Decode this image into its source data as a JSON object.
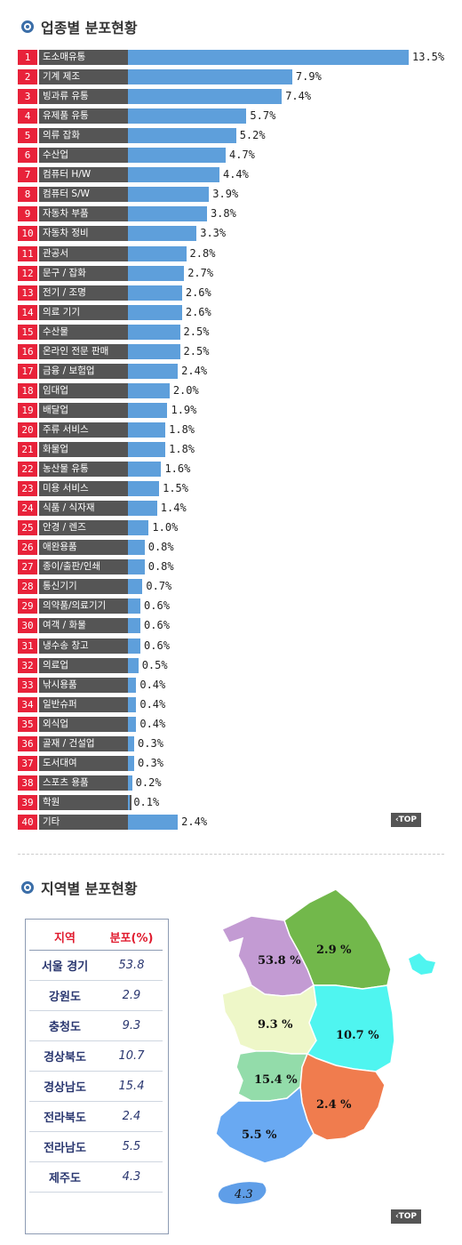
{
  "industry": {
    "title": "업종별 분포현황",
    "top_label": "‹TOP"
  },
  "region": {
    "title": "지역별 분포현황",
    "header": {
      "region": "지역",
      "share": "분포(%)"
    },
    "top_label": "‹TOP"
  },
  "chart_data": [
    {
      "type": "bar",
      "orientation": "horizontal",
      "title": "업종별 분포현황",
      "unit": "%",
      "ranks": [
        "1",
        "2",
        "3",
        "4",
        "5",
        "6",
        "7",
        "8",
        "9",
        "10",
        "11",
        "12",
        "13",
        "14",
        "15",
        "16",
        "17",
        "18",
        "19",
        "20",
        "21",
        "22",
        "23",
        "24",
        "25",
        "26",
        "27",
        "28",
        "29",
        "30",
        "31",
        "32",
        "33",
        "34",
        "35",
        "36",
        "37",
        "38",
        "39",
        "40"
      ],
      "categories": [
        "도소매유통",
        "기계 제조",
        "빙과류 유통",
        "유제품 유통",
        "의류 잡화",
        "수산업",
        "컴퓨터 H/W",
        "컴퓨터 S/W",
        "자동차 부품",
        "자동차 정비",
        "관공서",
        "문구 / 잡화",
        "전기 / 조명",
        "의료 기기",
        "수산물",
        "온라인 전문 판매",
        "금융 / 보험업",
        "임대업",
        "배달업",
        "주류 서비스",
        "화물업",
        "농산물 유통",
        "미용 서비스",
        "식품 / 식자재",
        "안경 / 렌즈",
        "애완용품",
        "종이/출판/인쇄",
        "통신기기",
        "의약품/의료기기",
        "여객 / 화물",
        "냉수송 창고",
        "의료업",
        "낚시용품",
        "일반슈퍼",
        "외식업",
        "골재 / 건설업",
        "도서대여",
        "스포츠 용품",
        "학원",
        "기타"
      ],
      "values": [
        13.5,
        7.9,
        7.4,
        5.7,
        5.2,
        4.7,
        4.4,
        3.9,
        3.8,
        3.3,
        2.8,
        2.7,
        2.6,
        2.6,
        2.5,
        2.5,
        2.4,
        2.0,
        1.9,
        1.8,
        1.8,
        1.6,
        1.5,
        1.4,
        1.0,
        0.8,
        0.8,
        0.7,
        0.6,
        0.6,
        0.6,
        0.5,
        0.4,
        0.4,
        0.4,
        0.3,
        0.3,
        0.2,
        0.1,
        2.4
      ],
      "labels": [
        "13.5%",
        "7.9%",
        "7.4%",
        "5.7%",
        "5.2%",
        "4.7%",
        "4.4%",
        "3.9%",
        "3.8%",
        "3.3%",
        "2.8%",
        "2.7%",
        "2.6%",
        "2.6%",
        "2.5%",
        "2.5%",
        "2.4%",
        "2.0%",
        "1.9%",
        "1.8%",
        "1.8%",
        "1.6%",
        "1.5%",
        "1.4%",
        "1.0%",
        "0.8%",
        "0.8%",
        "0.7%",
        "0.6%",
        "0.6%",
        "0.6%",
        "0.5%",
        "0.4%",
        "0.4%",
        "0.4%",
        "0.3%",
        "0.3%",
        "0.2%",
        "0.1%",
        "2.4%"
      ],
      "colors": {
        "rank": "#e8223a",
        "category": "#555555",
        "bar": "#5e9fdb"
      }
    },
    {
      "type": "table",
      "title": "지역별 분포현황",
      "unit": "%",
      "categories": [
        "서울 경기",
        "강원도",
        "충청도",
        "경상북도",
        "경상남도",
        "전라북도",
        "전라남도",
        "제주도"
      ],
      "values": [
        53.8,
        2.9,
        9.3,
        10.7,
        15.4,
        2.4,
        5.5,
        4.3
      ],
      "labels": [
        "53.8",
        "2.9",
        "9.3",
        "10.7",
        "15.4",
        "2.4",
        "5.5",
        "4.3"
      ],
      "map_labels": [
        "53.8 %",
        "2.9 %",
        "9.3 %",
        "10.7 %",
        "15.4 %",
        "2.4 %",
        "5.5 %",
        "4.3"
      ],
      "map_colors": [
        "#c39bd3",
        "#72b84b",
        "#eef7c8",
        "#4ff5f0",
        "#93dcaa",
        "#f07c4e",
        "#69a9f2",
        "#5f9ee8"
      ]
    }
  ]
}
